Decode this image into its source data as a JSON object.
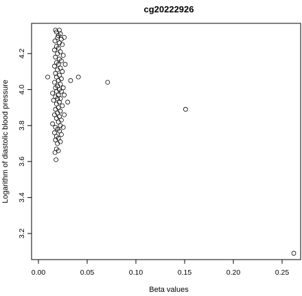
{
  "chart_data": {
    "type": "scatter",
    "title": "cg20222926",
    "xlabel": "Beta values",
    "ylabel": "Logarithm of diastolic blood pressure",
    "xlim": [
      0.0,
      0.265
    ],
    "ylim": [
      3.08,
      4.33
    ],
    "xticks": [
      0.0,
      0.05,
      0.1,
      0.15,
      0.2,
      0.25
    ],
    "xtick_labels": [
      "0.00",
      "0.05",
      "0.10",
      "0.15",
      "0.20",
      "0.25"
    ],
    "yticks": [
      3.2,
      3.4,
      3.6,
      3.8,
      4.0,
      4.2
    ],
    "ytick_labels": [
      "3.2",
      "3.4",
      "3.6",
      "3.8",
      "4.0",
      "4.2"
    ],
    "grid": false,
    "legend": "none",
    "marker": "open-circle",
    "points": [
      {
        "x": 0.0175,
        "y": 4.33
      },
      {
        "x": 0.0215,
        "y": 4.33
      },
      {
        "x": 0.0185,
        "y": 4.32
      },
      {
        "x": 0.0225,
        "y": 4.31
      },
      {
        "x": 0.0205,
        "y": 4.3
      },
      {
        "x": 0.0265,
        "y": 4.29
      },
      {
        "x": 0.0195,
        "y": 4.29
      },
      {
        "x": 0.0235,
        "y": 4.28
      },
      {
        "x": 0.017,
        "y": 4.27
      },
      {
        "x": 0.0215,
        "y": 4.26
      },
      {
        "x": 0.0245,
        "y": 4.25
      },
      {
        "x": 0.0185,
        "y": 4.24
      },
      {
        "x": 0.0205,
        "y": 4.23
      },
      {
        "x": 0.0165,
        "y": 4.22
      },
      {
        "x": 0.0225,
        "y": 4.21
      },
      {
        "x": 0.0195,
        "y": 4.2
      },
      {
        "x": 0.0255,
        "y": 4.19
      },
      {
        "x": 0.0175,
        "y": 4.18
      },
      {
        "x": 0.0215,
        "y": 4.17
      },
      {
        "x": 0.0235,
        "y": 4.16
      },
      {
        "x": 0.0185,
        "y": 4.15
      },
      {
        "x": 0.0205,
        "y": 4.14
      },
      {
        "x": 0.0275,
        "y": 4.14
      },
      {
        "x": 0.0165,
        "y": 4.13
      },
      {
        "x": 0.0225,
        "y": 4.12
      },
      {
        "x": 0.0195,
        "y": 4.11
      },
      {
        "x": 0.0245,
        "y": 4.1
      },
      {
        "x": 0.0175,
        "y": 4.09
      },
      {
        "x": 0.0215,
        "y": 4.08
      },
      {
        "x": 0.0095,
        "y": 4.07
      },
      {
        "x": 0.041,
        "y": 4.07
      },
      {
        "x": 0.0185,
        "y": 4.07
      },
      {
        "x": 0.0235,
        "y": 4.06
      },
      {
        "x": 0.033,
        "y": 4.05
      },
      {
        "x": 0.0205,
        "y": 4.05
      },
      {
        "x": 0.071,
        "y": 4.04
      },
      {
        "x": 0.0165,
        "y": 4.04
      },
      {
        "x": 0.0225,
        "y": 4.03
      },
      {
        "x": 0.0195,
        "y": 4.02
      },
      {
        "x": 0.0255,
        "y": 4.01
      },
      {
        "x": 0.0175,
        "y": 4.01
      },
      {
        "x": 0.0215,
        "y": 4.0
      },
      {
        "x": 0.0185,
        "y": 3.99
      },
      {
        "x": 0.0235,
        "y": 3.99
      },
      {
        "x": 0.0145,
        "y": 3.98
      },
      {
        "x": 0.0205,
        "y": 3.97
      },
      {
        "x": 0.0265,
        "y": 3.97
      },
      {
        "x": 0.0175,
        "y": 3.96
      },
      {
        "x": 0.0225,
        "y": 3.95
      },
      {
        "x": 0.0195,
        "y": 3.95
      },
      {
        "x": 0.0155,
        "y": 3.94
      },
      {
        "x": 0.0215,
        "y": 3.93
      },
      {
        "x": 0.03,
        "y": 3.93
      },
      {
        "x": 0.0185,
        "y": 3.92
      },
      {
        "x": 0.0245,
        "y": 3.91
      },
      {
        "x": 0.0205,
        "y": 3.9
      },
      {
        "x": 0.151,
        "y": 3.89
      },
      {
        "x": 0.0175,
        "y": 3.89
      },
      {
        "x": 0.0225,
        "y": 3.88
      },
      {
        "x": 0.0195,
        "y": 3.87
      },
      {
        "x": 0.0265,
        "y": 3.86
      },
      {
        "x": 0.0165,
        "y": 3.86
      },
      {
        "x": 0.0215,
        "y": 3.85
      },
      {
        "x": 0.0185,
        "y": 3.84
      },
      {
        "x": 0.0235,
        "y": 3.83
      },
      {
        "x": 0.0205,
        "y": 3.82
      },
      {
        "x": 0.0145,
        "y": 3.81
      },
      {
        "x": 0.0225,
        "y": 3.8
      },
      {
        "x": 0.0175,
        "y": 3.79
      },
      {
        "x": 0.0255,
        "y": 3.79
      },
      {
        "x": 0.0195,
        "y": 3.78
      },
      {
        "x": 0.0215,
        "y": 3.77
      },
      {
        "x": 0.0165,
        "y": 3.76
      },
      {
        "x": 0.0235,
        "y": 3.75
      },
      {
        "x": 0.0185,
        "y": 3.74
      },
      {
        "x": 0.0205,
        "y": 3.73
      },
      {
        "x": 0.0175,
        "y": 3.72
      },
      {
        "x": 0.0225,
        "y": 3.71
      },
      {
        "x": 0.0195,
        "y": 3.7
      },
      {
        "x": 0.0185,
        "y": 3.67
      },
      {
        "x": 0.017,
        "y": 3.65
      },
      {
        "x": 0.0205,
        "y": 3.66
      },
      {
        "x": 0.018,
        "y": 3.61
      },
      {
        "x": 0.262,
        "y": 3.09
      }
    ]
  }
}
